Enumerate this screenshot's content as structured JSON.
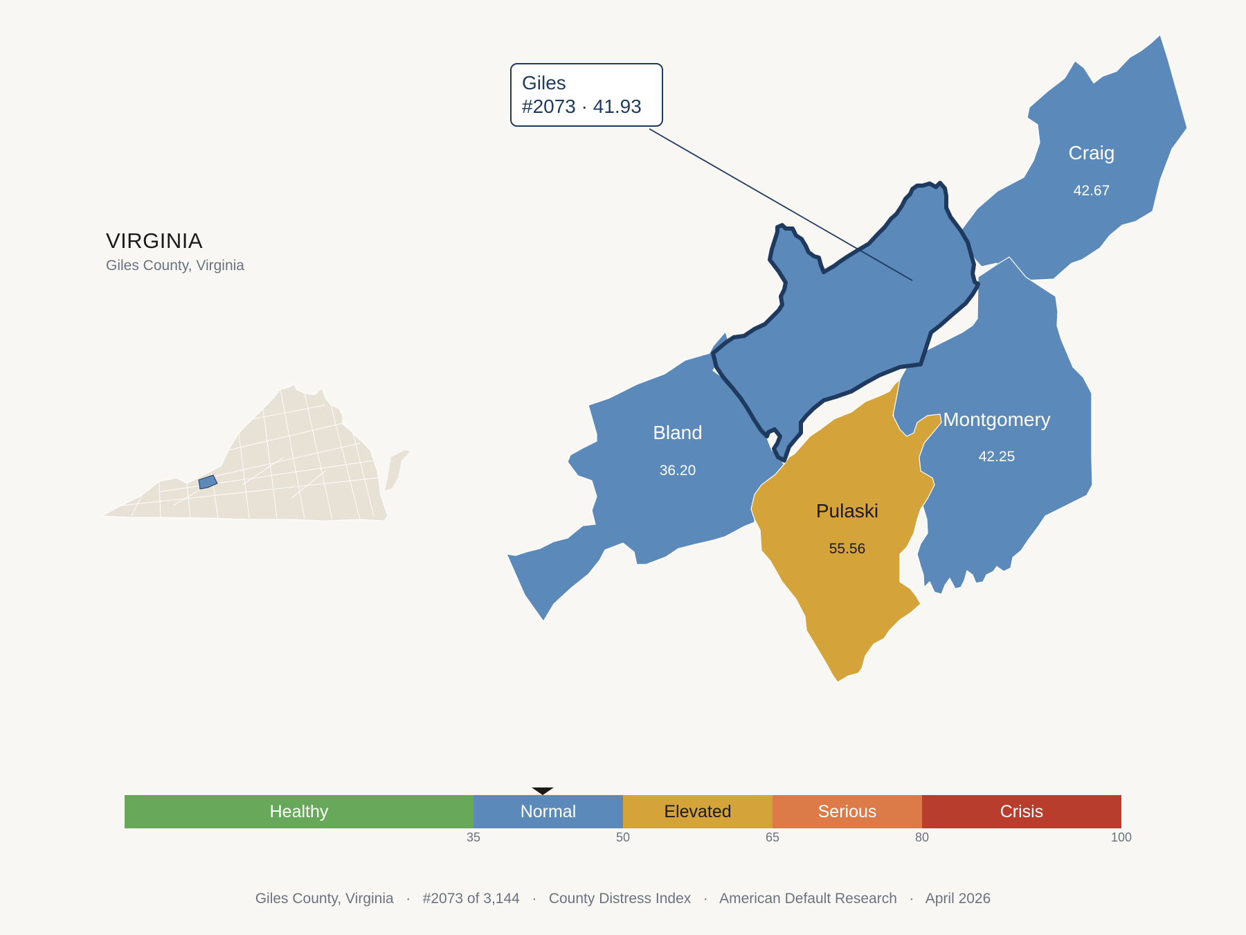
{
  "state": {
    "title": "VIRGINIA",
    "subtitle": "Giles County, Virginia"
  },
  "callout": {
    "name": "Giles",
    "detail": "#2073 · 41.93"
  },
  "counties": [
    {
      "id": "giles",
      "name": "Giles",
      "value": "41.93",
      "category": "Normal",
      "selected": true
    },
    {
      "id": "craig",
      "name": "Craig",
      "value": "42.67",
      "category": "Normal"
    },
    {
      "id": "bland",
      "name": "Bland",
      "value": "36.20",
      "category": "Normal"
    },
    {
      "id": "montgomery",
      "name": "Montgomery",
      "value": "42.25",
      "category": "Normal"
    },
    {
      "id": "pulaski",
      "name": "Pulaski",
      "value": "55.56",
      "category": "Elevated"
    }
  ],
  "scale": {
    "bands": [
      {
        "label": "Healthy",
        "min": 0,
        "max": 35,
        "color": "#67a85a",
        "text_color": "#ffffff"
      },
      {
        "label": "Normal",
        "min": 35,
        "max": 50,
        "color": "#5b89b9",
        "text_color": "#ffffff"
      },
      {
        "label": "Elevated",
        "min": 50,
        "max": 65,
        "color": "#d4a43a",
        "text_color": "#1a1a1a"
      },
      {
        "label": "Serious",
        "min": 65,
        "max": 80,
        "color": "#dc7a48",
        "text_color": "#ffffff"
      },
      {
        "label": "Crisis",
        "min": 80,
        "max": 100,
        "color": "#b93d2c",
        "text_color": "#ffffff"
      }
    ],
    "ticks": [
      "35",
      "50",
      "65",
      "80",
      "100"
    ],
    "marker_value": 41.93
  },
  "colors": {
    "normal": "#5b89b9",
    "elevated": "#d4a43a",
    "selected_outline": "#1f3a5f",
    "state_fill": "#e8e1d5",
    "background": "#f9f7f4"
  },
  "footer": {
    "county": "Giles County, Virginia",
    "rank": "#2073 of 3,144",
    "index": "County Distress Index",
    "source": "American Default Research",
    "date": "April 2026"
  }
}
